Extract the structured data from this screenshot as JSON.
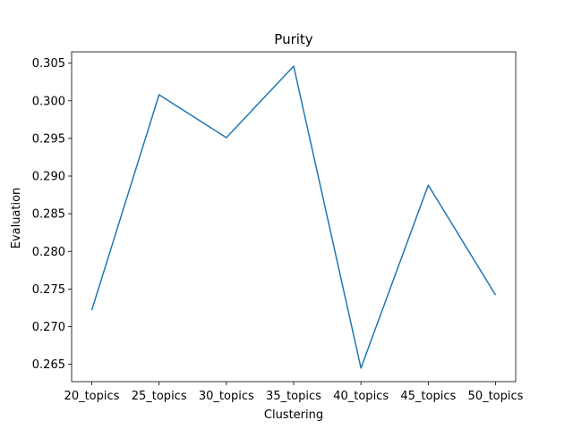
{
  "chart_data": {
    "type": "line",
    "title": "Purity",
    "xlabel": "Clustering",
    "ylabel": "Evaluation",
    "categories": [
      "20_topics",
      "25_topics",
      "30_topics",
      "35_topics",
      "40_topics",
      "45_topics",
      "50_topics"
    ],
    "series": [
      {
        "values": [
          0.2722,
          0.3008,
          0.2951,
          0.3046,
          0.2645,
          0.2888,
          0.2742
        ],
        "color": "#1f77b4"
      }
    ],
    "yticks": [
      "0.265",
      "0.270",
      "0.275",
      "0.280",
      "0.285",
      "0.290",
      "0.295",
      "0.300",
      "0.305"
    ],
    "ylim": [
      0.2627,
      0.3065
    ],
    "grid": false,
    "legend": "none"
  }
}
